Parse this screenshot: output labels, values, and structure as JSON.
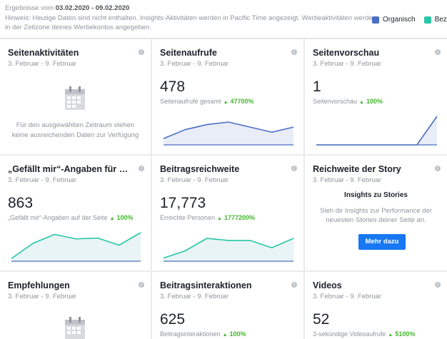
{
  "header": {
    "results_prefix": "Ergebnisse vom",
    "results_range": "03.02.2020 - 09.02.2020",
    "note_line1": "Hinweis: Heutige Daten sind nicht enthalten. Insights-Aktivitäten werden in Pacific Time angezeigt. Werbeaktivitäten werden",
    "note_line2": "in der Zeitzone deines Werbekontos angegeben."
  },
  "legend": {
    "organic_label": "Organisch",
    "organic_color": "#4a6fc4",
    "paid_label": "Bezahlt",
    "paid_color": "#26c6a6"
  },
  "cards": {
    "seitenaktivitaeten": {
      "title": "Seitenaktivitäten",
      "date": "3. Februar - 9. Februar",
      "empty_line1": "Für den ausgewählten Zeitraum stehen",
      "empty_line2": "keine ausreichenden Daten zur Verfügung"
    },
    "seitenaufrufe": {
      "title": "Seitenaufrufe",
      "date": "3. Februar - 9. Februar",
      "value": "478",
      "subtitle": "Seitenaufrufe gesamt",
      "change": "47700%",
      "series": [
        5,
        12,
        16,
        18,
        14,
        10,
        14
      ]
    },
    "seitenvorschau": {
      "title": "Seitenvorschau",
      "date": "3. Februar - 9. Februar",
      "value": "1",
      "subtitle": "Seitenvorschau",
      "change": "100%",
      "series": [
        0,
        0,
        0,
        0,
        0,
        0,
        1
      ]
    },
    "gefaellt": {
      "title": "„Gefällt mir“-Angaben für die Seite",
      "date": "3. Februar - 9. Februar",
      "value": "863",
      "subtitle": "„Gefällt mir“-Angaben auf der Seite",
      "change": "100%",
      "series": [
        3,
        20,
        30,
        25,
        26,
        18,
        32
      ]
    },
    "beitragsreichweite": {
      "title": "Beitragsreichweite",
      "date": "3. Februar - 9. Februar",
      "value": "17,773",
      "subtitle": "Erreichte Personen",
      "change": "1777200%",
      "series": [
        3,
        10,
        22,
        20,
        20,
        13,
        22
      ]
    },
    "story": {
      "title": "Reichweite der Story",
      "date": "3. Februar - 9. Februar",
      "head": "Insights zu Stories",
      "text_line1": "Sieh dir Insights zur Performance der",
      "text_line2": "neuesten Stories deiner Seite an.",
      "button": "Mehr dazu"
    },
    "empfehlungen": {
      "title": "Empfehlungen",
      "date": "3. Februar - 9. Februar"
    },
    "beitragsinteraktionen": {
      "title": "Beitragsinteraktionen",
      "date": "3. Februar - 9. Februar",
      "value": "625",
      "subtitle": "Beitragsinteraktionen",
      "change": "100%"
    },
    "videos": {
      "title": "Videos",
      "date": "3. Februar - 9. Februar",
      "value": "52",
      "subtitle": "3-sekündige Videoaufrufe",
      "change": "5100%"
    }
  }
}
